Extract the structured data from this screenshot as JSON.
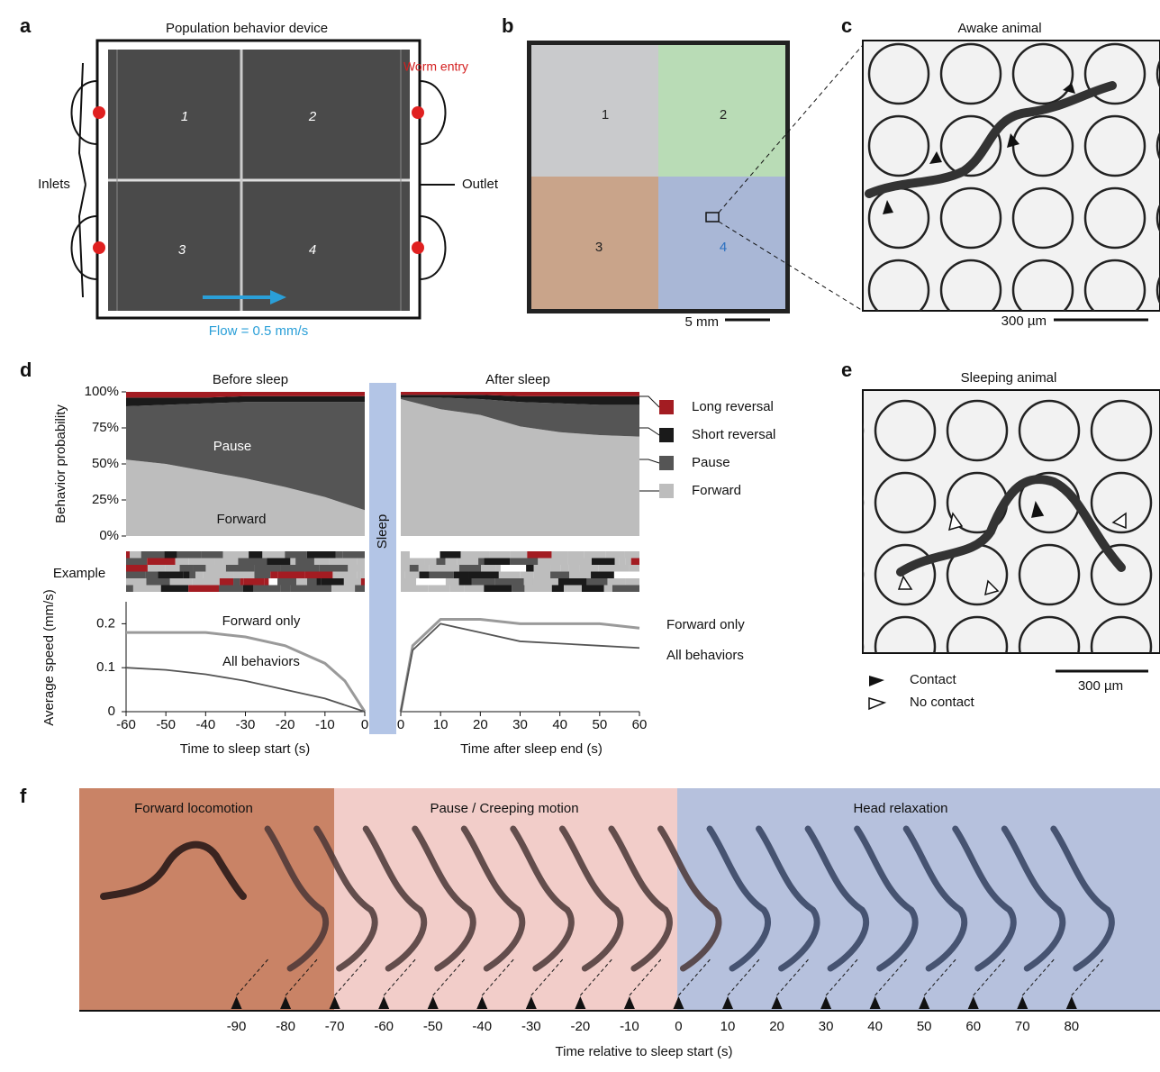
{
  "panels": {
    "a": {
      "letter": "a",
      "title": "Population behavior device",
      "worm_entry": "Worm entry",
      "inlets": "Inlets",
      "outlet": "Outlet",
      "flow": "Flow = 0.5 mm/s",
      "chambers": [
        "1",
        "2",
        "3",
        "4"
      ]
    },
    "b": {
      "letter": "b",
      "chambers": [
        "1",
        "2",
        "3",
        "4"
      ],
      "scale_bar": "5 mm"
    },
    "c": {
      "letter": "c",
      "title": "Awake animal",
      "scale_bar": "300 µm"
    },
    "d": {
      "letter": "d",
      "before_title": "Before sleep",
      "after_title": "After sleep",
      "sleep_label": "Sleep",
      "probability": {
        "ylabel": "Behavior probability",
        "ylim": [
          0,
          100
        ],
        "yticks": [
          {
            "value": 0,
            "label": "0%"
          },
          {
            "value": 25,
            "label": "25%"
          },
          {
            "value": 50,
            "label": "50%"
          },
          {
            "value": 75,
            "label": "75%"
          },
          {
            "value": 100,
            "label": "100%"
          }
        ],
        "legend": [
          {
            "name": "Long reversal",
            "color": "#a31c22"
          },
          {
            "name": "Short reversal",
            "color": "#1a1a1a"
          },
          {
            "name": "Pause",
            "color": "#555555"
          },
          {
            "name": "Forward",
            "color": "#bdbdbd"
          }
        ],
        "region_labels": [
          "Pause",
          "Forward"
        ],
        "before": {
          "x": [
            -60,
            -50,
            -40,
            -30,
            -20,
            -10,
            0
          ],
          "values": [
            [
              4,
              4,
              4,
              3,
              3,
              3,
              3
            ],
            [
              6,
              5,
              4,
              4,
              4,
              4,
              4
            ],
            [
              37,
              41,
              47,
              53,
              59,
              66,
              75
            ],
            [
              53,
              50,
              45,
              40,
              34,
              27,
              18
            ]
          ]
        },
        "after": {
          "x": [
            0,
            10,
            20,
            30,
            40,
            50,
            60
          ],
          "values": [
            [
              2,
              2,
              2,
              3,
              3,
              3,
              3
            ],
            [
              2,
              2,
              3,
              4,
              5,
              6,
              6
            ],
            [
              1,
              8,
              11,
              17,
              20,
              21,
              22
            ],
            [
              95,
              88,
              84,
              76,
              72,
              70,
              69
            ]
          ]
        }
      },
      "example_label": "Example",
      "speed": {
        "ylabel": "Average speed (mm/s)",
        "ylim": [
          0,
          0.25
        ],
        "yticks": [
          0,
          0.1,
          0.2
        ],
        "series": [
          {
            "name": "Forward only",
            "color": "#9a9a9a"
          },
          {
            "name": "All behaviors",
            "color": "#555555"
          }
        ],
        "before": {
          "x": [
            -60,
            -50,
            -40,
            -30,
            -20,
            -10,
            -5,
            0
          ],
          "values": [
            [
              0.18,
              0.18,
              0.18,
              0.17,
              0.15,
              0.11,
              0.07,
              0
            ],
            [
              0.1,
              0.095,
              0.085,
              0.07,
              0.05,
              0.03,
              0.015,
              0
            ]
          ]
        },
        "after": {
          "x": [
            0,
            3,
            10,
            20,
            30,
            40,
            50,
            60
          ],
          "values": [
            [
              0,
              0.15,
              0.21,
              0.21,
              0.2,
              0.2,
              0.2,
              0.19
            ],
            [
              0,
              0.14,
              0.2,
              0.18,
              0.16,
              0.155,
              0.15,
              0.145
            ]
          ]
        }
      },
      "xlim_before": [
        -60,
        0
      ],
      "xticks_before": [
        -60,
        -50,
        -40,
        -30,
        -20,
        -10,
        0
      ],
      "xlabel_before": "Time to sleep start (s)",
      "xlim_after": [
        0,
        60
      ],
      "xticks_after": [
        0,
        10,
        20,
        30,
        40,
        50,
        60
      ],
      "xlabel_after": "Time after sleep end (s)"
    },
    "e": {
      "letter": "e",
      "title": "Sleeping animal",
      "legend": [
        "Contact",
        "No contact"
      ],
      "scale_bar": "300 µm"
    },
    "f": {
      "letter": "f",
      "phases": [
        "Forward locomotion",
        "Pause / Creeping motion",
        "Head relaxation"
      ],
      "xlim": [
        -122,
        98
      ],
      "xticks": [
        -90,
        -80,
        -70,
        -60,
        -50,
        -40,
        -30,
        -20,
        -10,
        0,
        10,
        20,
        30,
        40,
        50,
        60,
        70,
        80
      ],
      "xlabel": "Time relative to sleep start (s)"
    }
  }
}
